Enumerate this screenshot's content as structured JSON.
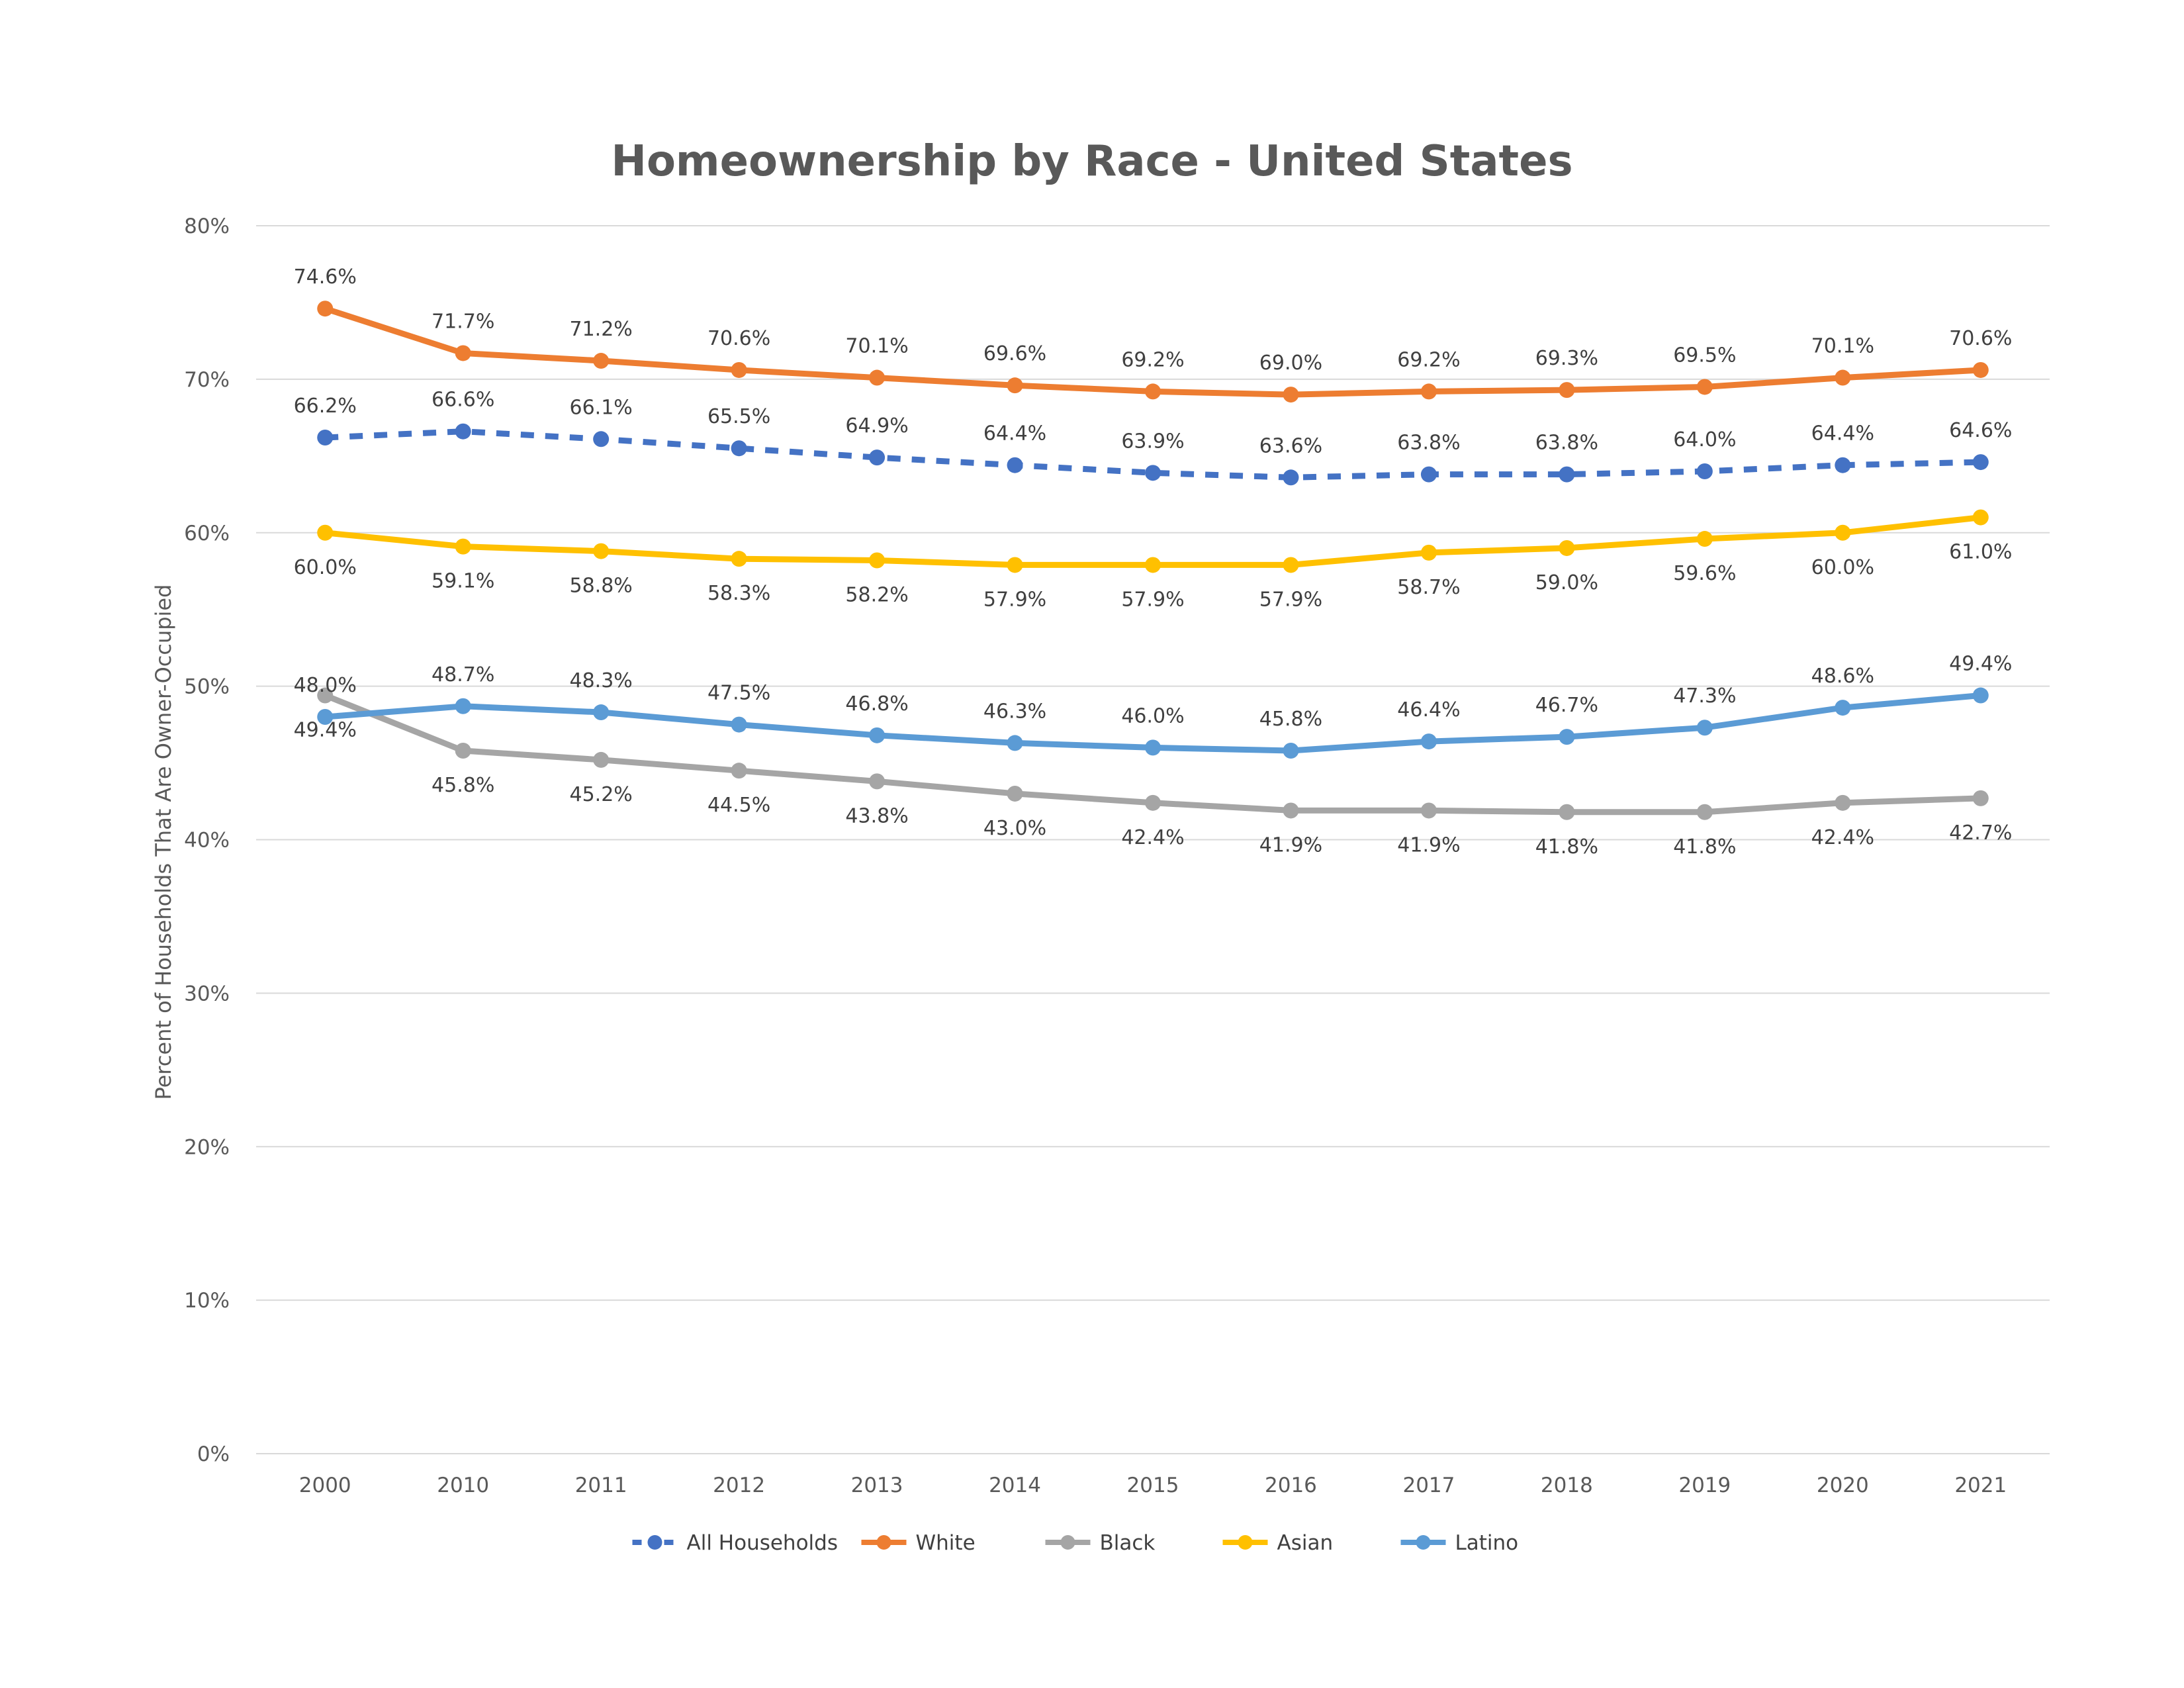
{
  "chart_data": {
    "type": "line",
    "title": "Homeownership by Race - United States",
    "xlabel": "",
    "ylabel": "Percent of Households That Are Owner-Occupied",
    "ylim": [
      0,
      80
    ],
    "ytick_values": [
      0,
      10,
      20,
      30,
      40,
      50,
      60,
      70,
      80
    ],
    "ytick_labels": [
      "0%",
      "10%",
      "20%",
      "30%",
      "40%",
      "50%",
      "60%",
      "70%",
      "80%"
    ],
    "categories": [
      "2000",
      "2010",
      "2011",
      "2012",
      "2013",
      "2014",
      "2015",
      "2016",
      "2017",
      "2018",
      "2019",
      "2020",
      "2021"
    ],
    "grid": true,
    "legend_position": "bottom",
    "series": [
      {
        "name": "All Households",
        "color": "#4472c4",
        "dashed": true,
        "label_position": "above",
        "values": [
          66.2,
          66.6,
          66.1,
          65.5,
          64.9,
          64.4,
          63.9,
          63.6,
          63.8,
          63.8,
          64.0,
          64.4,
          64.6
        ],
        "labels": [
          "66.2%",
          "66.6%",
          "66.1%",
          "65.5%",
          "64.9%",
          "64.4%",
          "63.9%",
          "63.6%",
          "63.8%",
          "63.8%",
          "64.0%",
          "64.4%",
          "64.6%"
        ]
      },
      {
        "name": "White",
        "color": "#ed7d31",
        "dashed": false,
        "label_position": "above",
        "values": [
          74.6,
          71.7,
          71.2,
          70.6,
          70.1,
          69.6,
          69.2,
          69.0,
          69.2,
          69.3,
          69.5,
          70.1,
          70.6
        ],
        "labels": [
          "74.6%",
          "71.7%",
          "71.2%",
          "70.6%",
          "70.1%",
          "69.6%",
          "69.2%",
          "69.0%",
          "69.2%",
          "69.3%",
          "69.5%",
          "70.1%",
          "70.6%"
        ]
      },
      {
        "name": "Black",
        "color": "#a5a5a5",
        "dashed": false,
        "label_position": "below",
        "values": [
          49.4,
          45.8,
          45.2,
          44.5,
          43.8,
          43.0,
          42.4,
          41.9,
          41.9,
          41.8,
          41.8,
          42.4,
          42.7
        ],
        "labels": [
          "49.4%",
          "45.8%",
          "45.2%",
          "44.5%",
          "43.8%",
          "43.0%",
          "42.4%",
          "41.9%",
          "41.9%",
          "41.8%",
          "41.8%",
          "42.4%",
          "42.7%"
        ]
      },
      {
        "name": "Asian",
        "color": "#ffc000",
        "dashed": false,
        "label_position": "below",
        "values": [
          60.0,
          59.1,
          58.8,
          58.3,
          58.2,
          57.9,
          57.9,
          57.9,
          58.7,
          59.0,
          59.6,
          60.0,
          61.0
        ],
        "labels": [
          "60.0%",
          "59.1%",
          "58.8%",
          "58.3%",
          "58.2%",
          "57.9%",
          "57.9%",
          "57.9%",
          "58.7%",
          "59.0%",
          "59.6%",
          "60.0%",
          "61.0%"
        ]
      },
      {
        "name": "Latino",
        "color": "#5b9bd5",
        "dashed": false,
        "label_position": "above",
        "values": [
          48.0,
          48.7,
          48.3,
          47.5,
          46.8,
          46.3,
          46.0,
          45.8,
          46.4,
          46.7,
          47.3,
          48.6,
          49.4
        ],
        "labels": [
          "48.0%",
          "48.7%",
          "48.3%",
          "47.5%",
          "46.8%",
          "46.3%",
          "46.0%",
          "45.8%",
          "46.4%",
          "46.7%",
          "47.3%",
          "48.6%",
          "49.4%"
        ]
      }
    ]
  }
}
